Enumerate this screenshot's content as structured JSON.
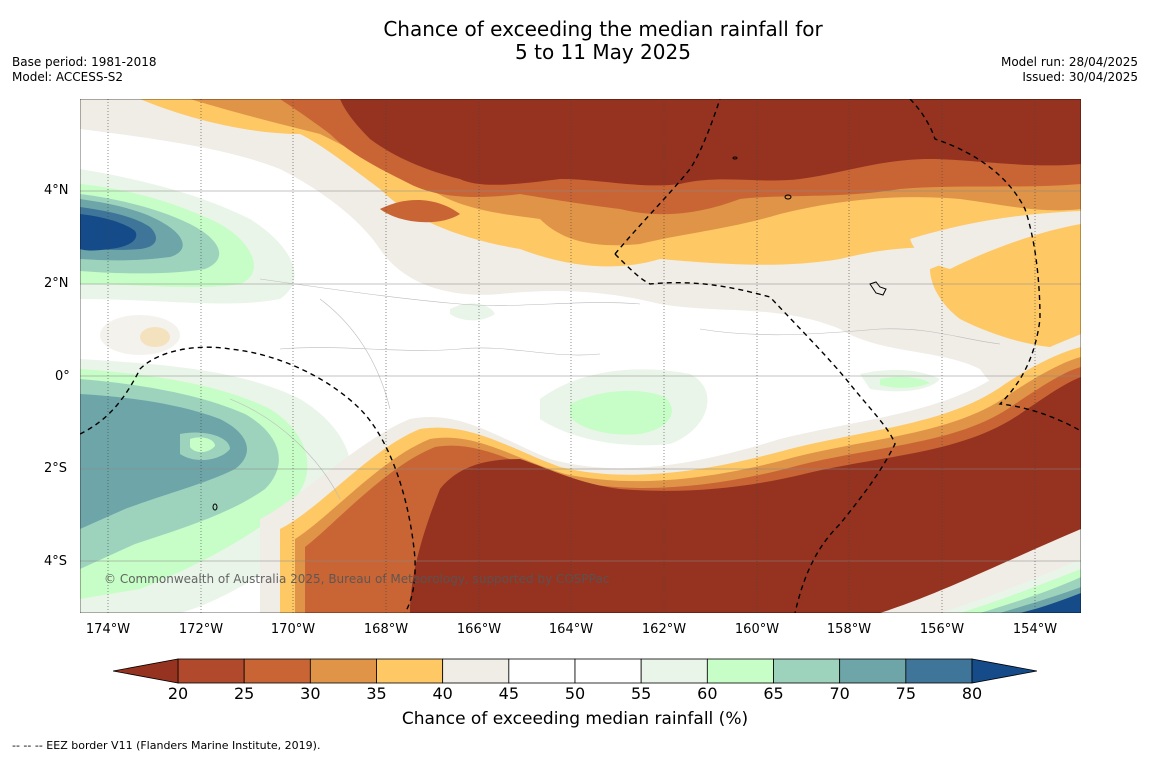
{
  "title": {
    "line1": "Chance of exceeding the median rainfall for",
    "line2": "5 to 11 May 2025"
  },
  "meta": {
    "base_period": "Base period: 1981-2018",
    "model": "Model: ACCESS-S2",
    "model_run": "Model run: 28/04/2025",
    "issued": "Issued: 30/04/2025"
  },
  "map": {
    "lat_labels": [
      "4°N",
      "2°N",
      "0°",
      "2°S",
      "4°S"
    ],
    "lon_labels": [
      "174°W",
      "172°W",
      "170°W",
      "168°W",
      "166°W",
      "164°W",
      "162°W",
      "160°W",
      "158°W",
      "156°W",
      "154°W"
    ],
    "copyright": "© Commonwealth of Australia 2025, Bureau of Meteorology, supported by COSPPac",
    "eez_line_color": "#000000"
  },
  "colorbar": {
    "ticks": [
      "20",
      "25",
      "30",
      "35",
      "40",
      "45",
      "50",
      "55",
      "60",
      "65",
      "70",
      "75",
      "80"
    ],
    "colors": [
      "#963320",
      "#b14a2c",
      "#c96535",
      "#e09447",
      "#fec865",
      "#f0ece6",
      "#ffffff",
      "#ffffff",
      "#eaf5e9",
      "#c7fdc6",
      "#9dd3bd",
      "#6da5a9",
      "#3e7598",
      "#144b88"
    ],
    "label": "Chance of exceeding median rainfall (%)"
  },
  "footnote": "--  --  -- EEZ border V11 (Flanders Marine Institute, 2019)."
}
